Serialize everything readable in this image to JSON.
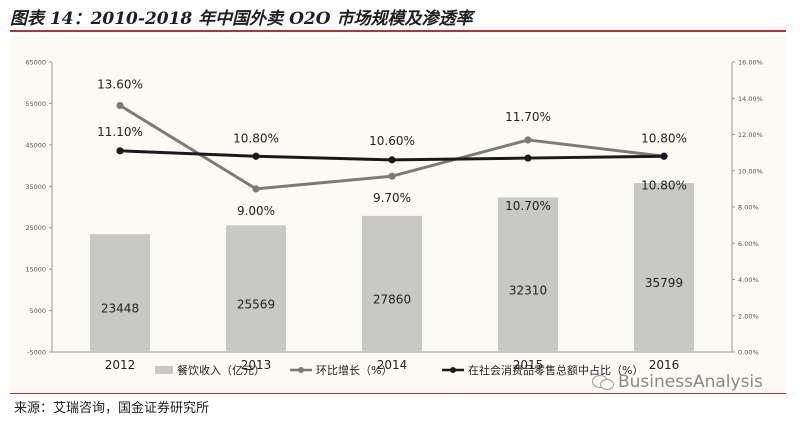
{
  "page_title": "图表 14：2010-2018 年中国外卖 O2O 市场规模及渗透率",
  "source_note": "来源：艾瑞咨询，国金证券研究所",
  "watermark_text": "BusinessAnalysis",
  "chart_data": {
    "type": "bar+line",
    "categories": [
      "2012",
      "2013",
      "2014",
      "2015",
      "2016"
    ],
    "y_left": {
      "range": [
        -5000,
        65000
      ],
      "ticks": [
        -5000,
        5000,
        15000,
        25000,
        35000,
        45000,
        55000,
        65000
      ],
      "tick_labels": [
        "-5000",
        "5000",
        "15000",
        "25000",
        "35000",
        "45000",
        "55000",
        "65000"
      ]
    },
    "y_right": {
      "range": [
        0,
        16
      ],
      "ticks": [
        0,
        2,
        4,
        6,
        8,
        10,
        12,
        14,
        16
      ],
      "tick_labels": [
        "0.00%",
        "2.00%",
        "4.00%",
        "6.00%",
        "8.00%",
        "10.00%",
        "12.00%",
        "14.00%",
        "16.00%"
      ]
    },
    "series": [
      {
        "name": "餐饮收入（亿元）",
        "kind": "bar",
        "axis": "left",
        "color": "#c8c8c4",
        "values": [
          23448,
          25569,
          27860,
          32310,
          35799
        ],
        "labels": [
          "23448",
          "25569",
          "27860",
          "32310",
          "35799"
        ]
      },
      {
        "name": "环比增长（%）",
        "kind": "line",
        "axis": "right",
        "color": "#7b7b78",
        "values": [
          13.6,
          9.0,
          9.7,
          11.7,
          10.8
        ],
        "labels": [
          "13.60%",
          "9.00%",
          "9.70%",
          "11.70%",
          "10.80%"
        ]
      },
      {
        "name": "在社会消费品零售总额中占比（%）",
        "kind": "line",
        "axis": "right",
        "color": "#1a1a1a",
        "values": [
          11.1,
          10.8,
          10.6,
          10.7,
          10.8
        ],
        "labels": [
          "11.10%",
          "10.80%",
          "10.60%",
          "10.70%",
          "10.80%"
        ]
      }
    ],
    "legend_position": "bottom",
    "grid": false
  }
}
